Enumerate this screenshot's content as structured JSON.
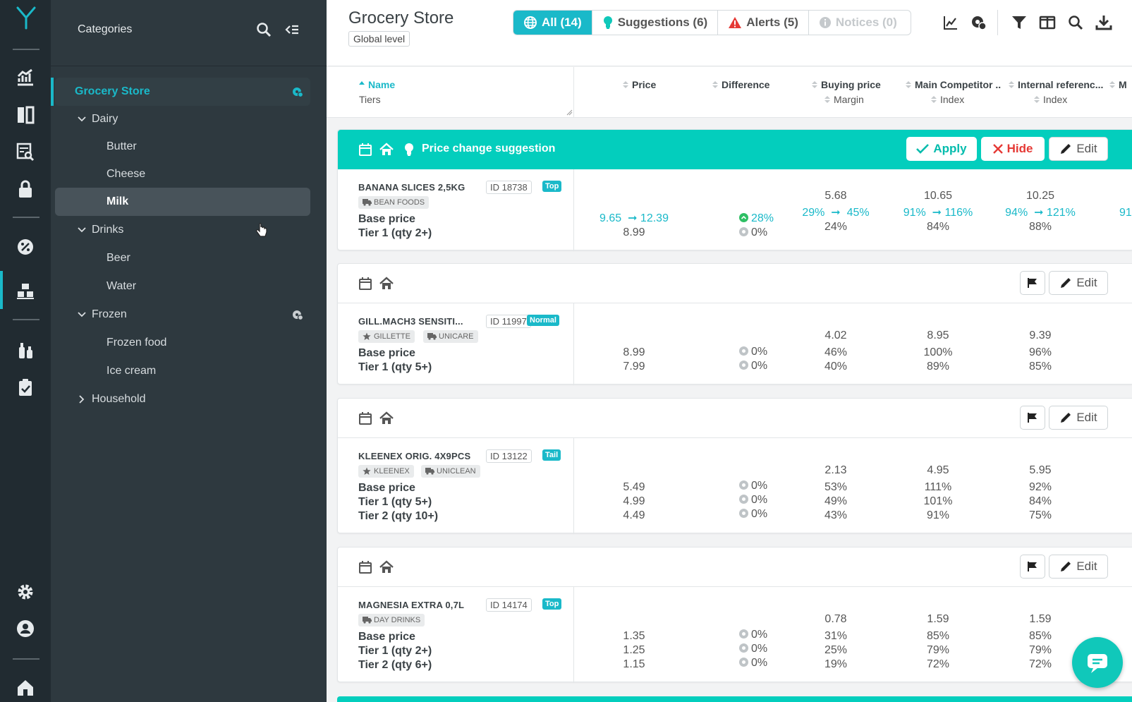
{
  "sidebar": {
    "title": "Categories",
    "tree": [
      {
        "label": "Grocery Store",
        "level": 0,
        "kind": "root"
      },
      {
        "label": "Dairy",
        "level": 1,
        "expanded": true
      },
      {
        "label": "Butter",
        "level": 2
      },
      {
        "label": "Cheese",
        "level": 2
      },
      {
        "label": "Milk",
        "level": 2,
        "selected": true
      },
      {
        "label": "Drinks",
        "level": 1,
        "expanded": true
      },
      {
        "label": "Beer",
        "level": 2
      },
      {
        "label": "Water",
        "level": 2
      },
      {
        "label": "Frozen",
        "level": 1,
        "expanded": true
      },
      {
        "label": "Frozen food",
        "level": 2
      },
      {
        "label": "Ice cream",
        "level": 2
      },
      {
        "label": "Household",
        "level": 1,
        "expanded": false
      }
    ]
  },
  "header": {
    "title": "Grocery Store",
    "level": "Global level",
    "filters": [
      {
        "label": "All (14)",
        "icon": "globe-icon"
      },
      {
        "label": "Suggestions (6)",
        "icon": "lightbulb-icon"
      },
      {
        "label": "Alerts (5)",
        "icon": "alert-icon"
      },
      {
        "label": "Notices (0)",
        "icon": "info-icon"
      }
    ]
  },
  "columns": {
    "name": {
      "title": "Name",
      "sub": "Tiers"
    },
    "price": {
      "title": "Price"
    },
    "difference": {
      "title": "Difference"
    },
    "buying": {
      "title": "Buying price",
      "sub": "Margin"
    },
    "competitor": {
      "title": "Main Competitor ..",
      "sub": "Index"
    },
    "internal": {
      "title": "Internal referenc...",
      "sub": "Index"
    },
    "more": {
      "title": "M"
    }
  },
  "suggestion": {
    "title": "Price change suggestion",
    "apply": "Apply",
    "hide": "Hide",
    "edit": "Edit"
  },
  "edit_label": "Edit",
  "products": [
    {
      "name": "BANANA SLICES 2,5KG",
      "id": "ID 18738",
      "tag": "Top",
      "chips": [
        {
          "label": "BEAN FOODS",
          "icon": "truck-icon"
        }
      ],
      "tiers": [
        "Base price",
        "Tier 1 (qty 2+)"
      ],
      "price_from": "9.65",
      "price_to": "12.39",
      "price_tier1": "8.99",
      "diff": [
        "28%",
        "0%"
      ],
      "buying": "5.68",
      "margin_from": "29%",
      "margin_to": "45%",
      "margin_tier1": "24%",
      "comp": "10.65",
      "comp_from": "91%",
      "comp_to": "116%",
      "comp_tier1": "84%",
      "internal": "10.25",
      "int_from": "94%",
      "int_to": "121%",
      "int_tier1": "88%",
      "extra": "91"
    },
    {
      "name": "GILL.MACH3 SENSITI...",
      "id": "ID 11997",
      "tag": "Normal",
      "chips": [
        {
          "label": "GILLETTE",
          "icon": "star-icon"
        },
        {
          "label": "UNICARE",
          "icon": "truck-icon"
        }
      ],
      "tiers": [
        "Base price",
        "Tier 1 (qty 5+)"
      ],
      "prices": [
        "8.99",
        "7.99"
      ],
      "diff": [
        "0%",
        "0%"
      ],
      "buying": "4.02",
      "margins": [
        "46%",
        "40%"
      ],
      "comp": "8.95",
      "comp_idx": [
        "100%",
        "89%"
      ],
      "internal": "9.39",
      "int_idx": [
        "96%",
        "85%"
      ]
    },
    {
      "name": "KLEENEX ORIG. 4X9PCS",
      "id": "ID 13122",
      "tag": "Tail",
      "chips": [
        {
          "label": "KLEENEX",
          "icon": "star-icon"
        },
        {
          "label": "UNICLEAN",
          "icon": "truck-icon"
        }
      ],
      "tiers": [
        "Base price",
        "Tier 1 (qty 5+)",
        "Tier 2 (qty 10+)"
      ],
      "prices": [
        "5.49",
        "4.99",
        "4.49"
      ],
      "diff": [
        "0%",
        "0%",
        "0%"
      ],
      "buying": "2.13",
      "margins": [
        "53%",
        "49%",
        "43%"
      ],
      "comp": "4.95",
      "comp_idx": [
        "111%",
        "101%",
        "91%"
      ],
      "internal": "5.95",
      "int_idx": [
        "92%",
        "84%",
        "75%"
      ]
    },
    {
      "name": "MAGNESIA EXTRA 0,7L",
      "id": "ID 14174",
      "tag": "Top",
      "chips": [
        {
          "label": "DAY DRINKS",
          "icon": "truck-icon"
        }
      ],
      "tiers": [
        "Base price",
        "Tier 1 (qty 2+)",
        "Tier 2 (qty 6+)"
      ],
      "prices": [
        "1.35",
        "1.25",
        "1.15"
      ],
      "diff": [
        "0%",
        "0%",
        "0%"
      ],
      "buying": "0.78",
      "margins": [
        "31%",
        "25%",
        "19%"
      ],
      "comp": "1.59",
      "comp_idx": [
        "85%",
        "79%",
        "72%"
      ],
      "internal": "1.59",
      "int_idx": [
        "85%",
        "79%",
        "72%"
      ]
    }
  ],
  "colors": {
    "accent": "#1ab9c9",
    "suggestion": "#03cebd",
    "rail": "#212b31",
    "panel": "#2e393f",
    "danger": "#e53935",
    "success": "#2ebf64"
  }
}
